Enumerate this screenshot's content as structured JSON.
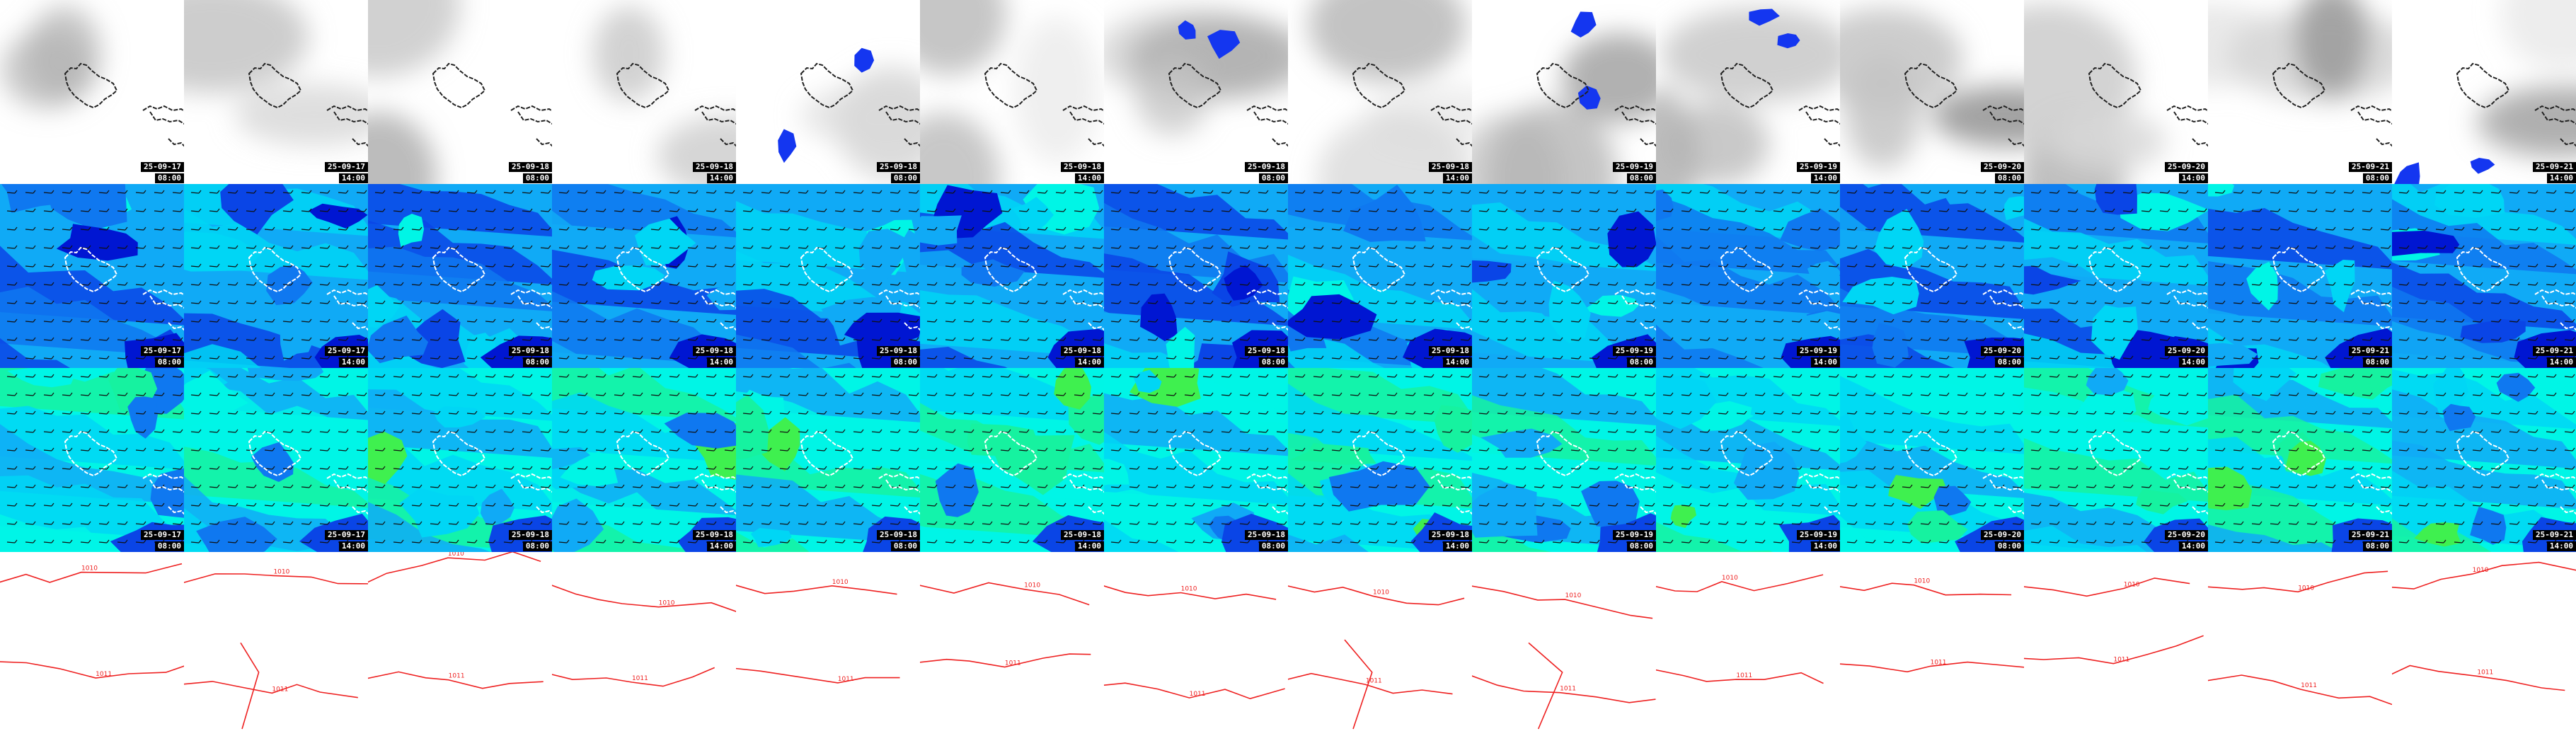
{
  "colors": {
    "wind_levels": [
      "#0016d2",
      "#0a45e6",
      "#0f78f0",
      "#10aaf6",
      "#00d6f5",
      "#00f5e6",
      "#16f2a0",
      "#3ff04f",
      "#8df020",
      "#f2ea16"
    ],
    "coastline": "#1a1a1a",
    "pressure_contour": "#ee2020",
    "precip_blue": "#1436f0",
    "cloud_gray": "#8a8a8a"
  },
  "rows": [
    {
      "layer": "cloud"
    },
    {
      "layer": "wind_low"
    },
    {
      "layer": "wind_high"
    },
    {
      "layer": "pressure"
    }
  ],
  "columns": [
    {
      "date": "25-09-17",
      "time": "08:00"
    },
    {
      "date": "25-09-17",
      "time": "14:00"
    },
    {
      "date": "25-09-18",
      "time": "08:00"
    },
    {
      "date": "25-09-18",
      "time": "14:00"
    },
    {
      "date": "25-09-18",
      "time": "08:00"
    },
    {
      "date": "25-09-18",
      "time": "14:00"
    },
    {
      "date": "25-09-18",
      "time": "08:00"
    },
    {
      "date": "25-09-18",
      "time": "14:00"
    },
    {
      "date": "25-09-19",
      "time": "08:00"
    },
    {
      "date": "25-09-19",
      "time": "14:00"
    },
    {
      "date": "25-09-20",
      "time": "08:00"
    },
    {
      "date": "25-09-20",
      "time": "14:00"
    },
    {
      "date": "25-09-21",
      "time": "08:00"
    },
    {
      "date": "25-09-21",
      "time": "14:00"
    }
  ],
  "contour_labels": [
    "1010",
    "1011",
    "1012"
  ]
}
